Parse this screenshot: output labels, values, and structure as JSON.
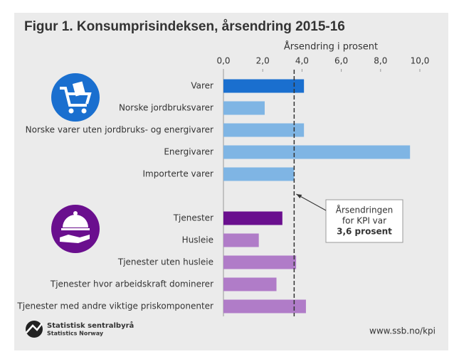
{
  "chart_data": {
    "type": "hbar",
    "title": "Figur 1. Konsumprisindeksen, årsendring 2015-16",
    "x_label": "Årsendring i prosent",
    "categories": [
      "Varer",
      "Norske jordbruksvarer",
      "Norske varer uten jordbruks- og energivarer",
      "Energivarer",
      "Importerte varer",
      null,
      "Tjenester",
      "Husleie",
      "Tjenester uten husleie",
      "Tjenester hvor arbeidskraft dominerer",
      "Tjenester med andre viktige priskomponenter"
    ],
    "values": [
      4.1,
      2.1,
      4.1,
      9.5,
      3.6,
      null,
      3.0,
      1.8,
      3.7,
      2.7,
      4.2
    ],
    "colors": [
      "#1a6fcf",
      "#7fb5e4",
      "#7fb5e4",
      "#7fb5e4",
      "#7fb5e4",
      null,
      "#6a0f8e",
      "#b07cc8",
      "#b07cc8",
      "#b07cc8",
      "#b07cc8"
    ],
    "xlim": [
      0,
      10
    ],
    "xticks": [
      {
        "value": 0,
        "label": "0,0"
      },
      {
        "value": 2,
        "label": "2,0"
      },
      {
        "value": 4,
        "label": "4,0"
      },
      {
        "value": 6,
        "label": "6,0"
      },
      {
        "value": 8,
        "label": "8,0"
      },
      {
        "value": 10,
        "label": "10,0"
      }
    ],
    "reference_line": 3.6,
    "annotation": [
      "Årsendringen",
      "for KPI var",
      "3,6 prosent"
    ],
    "footer": {
      "logo_name": "Statistisk sentralbyrå",
      "logo_subname": "Statistics Norway",
      "source": "www.ssb.no/kpi"
    }
  }
}
